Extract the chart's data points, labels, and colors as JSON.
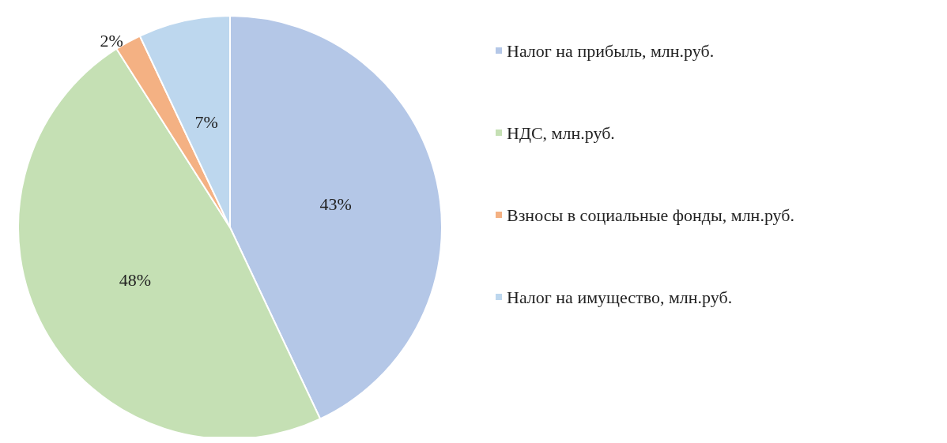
{
  "chart_data": {
    "type": "pie",
    "categories": [
      "Налог на прибыль, млн.руб.",
      "НДС, млн.руб.",
      "Взносы в социальные фонды, млн.руб.",
      "Налог на имущество, млн.руб."
    ],
    "values": [
      43,
      48,
      2,
      7
    ],
    "colors": [
      "#b4c7e7",
      "#c5e0b4",
      "#f4b183",
      "#bdd7ee"
    ],
    "value_labels": [
      "43%",
      "48%",
      "2%",
      "7%"
    ],
    "legend": "right"
  }
}
